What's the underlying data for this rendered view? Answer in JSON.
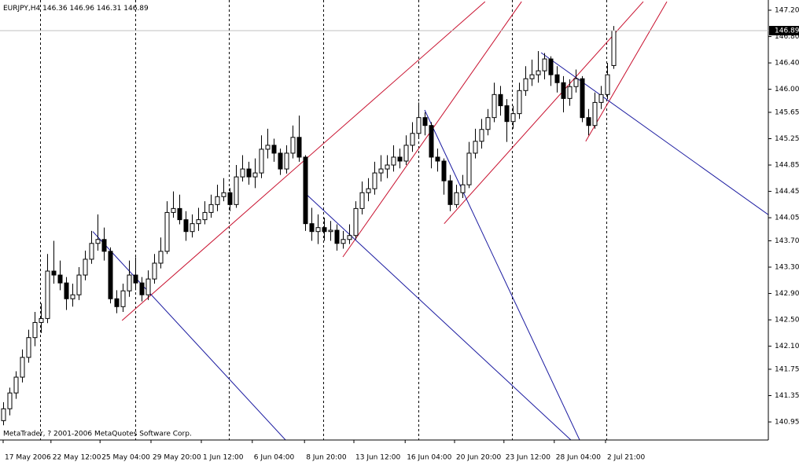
{
  "chart_data": {
    "type": "candlestick",
    "symbol": "EURJPY,H4",
    "footer": "MetaTrader, ? 2001-2006 MetaQuotes Software Corp.",
    "up_color": "#ffffff",
    "down_color": "#000000",
    "wick_color": "#000000",
    "candles": [
      [
        140.97,
        141.25,
        140.9,
        141.15
      ],
      [
        141.15,
        141.47,
        141.05,
        141.39
      ],
      [
        141.39,
        141.72,
        141.3,
        141.63
      ],
      [
        141.63,
        142.05,
        141.55,
        141.93
      ],
      [
        141.93,
        142.35,
        141.85,
        142.23
      ],
      [
        142.23,
        142.62,
        142.1,
        142.46
      ],
      [
        142.46,
        142.75,
        142.3,
        142.52
      ],
      [
        142.52,
        143.5,
        142.45,
        143.24
      ],
      [
        143.24,
        143.7,
        143.05,
        143.18
      ],
      [
        143.18,
        143.4,
        142.95,
        143.06
      ],
      [
        143.06,
        143.15,
        142.65,
        142.82
      ],
      [
        142.82,
        143.05,
        142.7,
        142.88
      ],
      [
        142.88,
        143.3,
        142.8,
        143.18
      ],
      [
        143.18,
        143.55,
        143.1,
        143.42
      ],
      [
        143.42,
        143.85,
        143.35,
        143.66
      ],
      [
        143.66,
        144.1,
        143.55,
        143.72
      ],
      [
        143.72,
        143.9,
        143.4,
        143.54
      ],
      [
        143.54,
        143.6,
        142.75,
        142.82
      ],
      [
        142.82,
        142.95,
        142.6,
        142.7
      ],
      [
        142.7,
        143.05,
        142.62,
        142.94
      ],
      [
        142.94,
        143.4,
        142.85,
        143.18
      ],
      [
        143.18,
        143.45,
        142.95,
        143.06
      ],
      [
        143.06,
        143.15,
        142.78,
        142.88
      ],
      [
        142.88,
        143.25,
        142.8,
        143.12
      ],
      [
        143.12,
        143.5,
        143.05,
        143.36
      ],
      [
        143.36,
        143.75,
        143.28,
        143.54
      ],
      [
        143.54,
        144.3,
        143.5,
        144.13
      ],
      [
        144.13,
        144.45,
        144.05,
        144.19
      ],
      [
        144.19,
        144.4,
        143.95,
        144.02
      ],
      [
        144.02,
        144.15,
        143.7,
        143.84
      ],
      [
        143.84,
        144.1,
        143.75,
        143.96
      ],
      [
        143.96,
        144.2,
        143.85,
        144.02
      ],
      [
        144.02,
        144.3,
        143.95,
        144.13
      ],
      [
        144.13,
        144.4,
        144.05,
        144.25
      ],
      [
        144.25,
        144.55,
        144.15,
        144.37
      ],
      [
        144.37,
        144.65,
        144.3,
        144.43
      ],
      [
        144.43,
        144.5,
        144.15,
        144.25
      ],
      [
        144.25,
        144.85,
        144.2,
        144.67
      ],
      [
        144.67,
        145.0,
        144.6,
        144.79
      ],
      [
        144.79,
        144.9,
        144.55,
        144.67
      ],
      [
        144.67,
        144.95,
        144.5,
        144.73
      ],
      [
        144.73,
        145.3,
        144.65,
        145.09
      ],
      [
        145.09,
        145.4,
        144.95,
        145.15
      ],
      [
        145.15,
        145.25,
        144.9,
        145.03
      ],
      [
        145.03,
        145.1,
        144.7,
        144.79
      ],
      [
        144.79,
        145.15,
        144.72,
        145.03
      ],
      [
        145.03,
        145.45,
        144.95,
        145.27
      ],
      [
        145.27,
        145.6,
        144.9,
        144.97
      ],
      [
        144.97,
        145.0,
        143.85,
        143.96
      ],
      [
        143.96,
        144.2,
        143.7,
        143.84
      ],
      [
        143.84,
        144.1,
        143.65,
        143.9
      ],
      [
        143.9,
        144.05,
        143.7,
        143.84
      ],
      [
        143.84,
        144.0,
        143.7,
        143.86
      ],
      [
        143.86,
        143.95,
        143.55,
        143.66
      ],
      [
        143.66,
        143.85,
        143.58,
        143.72
      ],
      [
        143.72,
        143.95,
        143.65,
        143.78
      ],
      [
        143.78,
        144.3,
        143.72,
        144.19
      ],
      [
        144.19,
        144.6,
        144.1,
        144.43
      ],
      [
        144.43,
        144.65,
        144.3,
        144.49
      ],
      [
        144.49,
        144.9,
        144.4,
        144.73
      ],
      [
        144.73,
        145.0,
        144.6,
        144.79
      ],
      [
        144.79,
        145.0,
        144.65,
        144.85
      ],
      [
        144.85,
        145.15,
        144.75,
        144.97
      ],
      [
        144.97,
        145.1,
        144.8,
        144.91
      ],
      [
        144.91,
        145.3,
        144.85,
        145.15
      ],
      [
        145.15,
        145.5,
        145.05,
        145.33
      ],
      [
        145.33,
        145.8,
        145.25,
        145.57
      ],
      [
        145.57,
        145.65,
        145.3,
        145.45
      ],
      [
        145.45,
        145.5,
        144.8,
        144.97
      ],
      [
        144.97,
        145.1,
        144.75,
        144.91
      ],
      [
        144.91,
        144.95,
        144.4,
        144.61
      ],
      [
        144.61,
        144.7,
        144.15,
        144.25
      ],
      [
        144.25,
        144.55,
        144.2,
        144.43
      ],
      [
        144.43,
        144.7,
        144.35,
        144.55
      ],
      [
        144.55,
        145.2,
        144.5,
        145.03
      ],
      [
        145.03,
        145.4,
        144.95,
        145.21
      ],
      [
        145.21,
        145.55,
        145.1,
        145.39
      ],
      [
        145.39,
        145.7,
        145.3,
        145.57
      ],
      [
        145.57,
        146.1,
        145.5,
        145.92
      ],
      [
        145.92,
        146.05,
        145.6,
        145.75
      ],
      [
        145.75,
        145.85,
        145.2,
        145.51
      ],
      [
        145.51,
        145.75,
        145.4,
        145.63
      ],
      [
        145.63,
        146.1,
        145.55,
        145.98
      ],
      [
        145.98,
        146.35,
        145.9,
        146.16
      ],
      [
        146.16,
        146.45,
        146.05,
        146.22
      ],
      [
        146.22,
        146.58,
        146.1,
        146.28
      ],
      [
        146.28,
        146.55,
        146.15,
        146.46
      ],
      [
        146.46,
        146.5,
        146.05,
        146.22
      ],
      [
        146.22,
        146.35,
        145.95,
        146.1
      ],
      [
        146.1,
        146.2,
        145.65,
        145.86
      ],
      [
        145.86,
        146.15,
        145.75,
        146.04
      ],
      [
        146.04,
        146.3,
        145.95,
        146.16
      ],
      [
        146.16,
        146.2,
        145.5,
        145.57
      ],
      [
        145.57,
        145.7,
        145.3,
        145.45
      ],
      [
        145.45,
        145.95,
        145.4,
        145.8
      ],
      [
        145.8,
        146.05,
        145.7,
        145.92
      ],
      [
        145.92,
        146.4,
        145.85,
        146.22
      ],
      [
        146.36,
        146.96,
        146.31,
        146.89
      ]
    ],
    "xlim": [
      -0.5,
      121.625
    ],
    "ylim": [
      140.676,
      147.355
    ],
    "yticks": [
      {
        "value": 147.2,
        "label": "147.20"
      },
      {
        "value": 146.8,
        "label": "146.80"
      },
      {
        "value": 146.4,
        "label": "146.40"
      },
      {
        "value": 146.0,
        "label": "146.00"
      },
      {
        "value": 145.65,
        "label": "145.65"
      },
      {
        "value": 145.25,
        "label": "145.25"
      },
      {
        "value": 144.85,
        "label": "144.85"
      },
      {
        "value": 144.45,
        "label": "144.45"
      },
      {
        "value": 144.05,
        "label": "144.05"
      },
      {
        "value": 143.7,
        "label": "143.70"
      },
      {
        "value": 143.3,
        "label": "143.30"
      },
      {
        "value": 142.9,
        "label": "142.90"
      },
      {
        "value": 142.5,
        "label": "142.50"
      },
      {
        "value": 142.1,
        "label": "142.10"
      },
      {
        "value": 141.75,
        "label": "141.75"
      },
      {
        "value": 141.35,
        "label": "141.35"
      },
      {
        "value": 140.95,
        "label": "140.95"
      }
    ],
    "xticks": [
      {
        "value": 0,
        "label": "17 May 2006"
      },
      {
        "value": 7.6,
        "label": "22 May 12:00"
      },
      {
        "value": 15.4,
        "label": "25 May 04:00"
      },
      {
        "value": 23.5,
        "label": "29 May 20:00"
      },
      {
        "value": 31.5,
        "label": "1 Jun 12:00"
      },
      {
        "value": 39.6,
        "label": "6 Jun 04:00"
      },
      {
        "value": 47.9,
        "label": "8 Jun 20:00"
      },
      {
        "value": 55.75,
        "label": "13 Jun 12:00"
      },
      {
        "value": 63.9,
        "label": "16 Jun 04:00"
      },
      {
        "value": 71.75,
        "label": "20 Jun 20:00"
      },
      {
        "value": 79.6,
        "label": "23 Jun 12:00"
      },
      {
        "value": 87.6,
        "label": "28 Jun 04:00"
      },
      {
        "value": 95.75,
        "label": "2 Jul 21:00"
      }
    ],
    "separators": [
      5.875,
      21,
      35.875,
      50.875,
      66,
      80.875,
      95.875
    ],
    "lines": [
      {
        "color": "#c8102e",
        "x": [
          18.9,
          76.6
        ],
        "y": [
          142.49,
          147.33
        ]
      },
      {
        "color": "#c8102e",
        "x": [
          54.0,
          82.4
        ],
        "y": [
          143.455,
          147.33
        ]
      },
      {
        "color": "#c8102e",
        "x": [
          70.1,
          101.75
        ],
        "y": [
          143.96,
          147.33
        ]
      },
      {
        "color": "#c8102e",
        "x": [
          92.6,
          105.5
        ],
        "y": [
          145.21,
          147.33
        ]
      },
      {
        "color": "#1a1aa0",
        "x": [
          14.25,
          46.4
        ],
        "y": [
          143.84,
          140.52
        ]
      },
      {
        "color": "#1a1aa0",
        "x": [
          48.25,
          92.0
        ],
        "y": [
          144.4,
          140.52
        ]
      },
      {
        "color": "#1a1aa0",
        "x": [
          67.0,
          92.4
        ],
        "y": [
          145.685,
          140.52
        ]
      },
      {
        "color": "#1a1aa0",
        "x": [
          85.5,
          122.0
        ],
        "y": [
          146.556,
          144.07
        ]
      }
    ],
    "bid_line_color": "#c0c0c0"
  }
}
